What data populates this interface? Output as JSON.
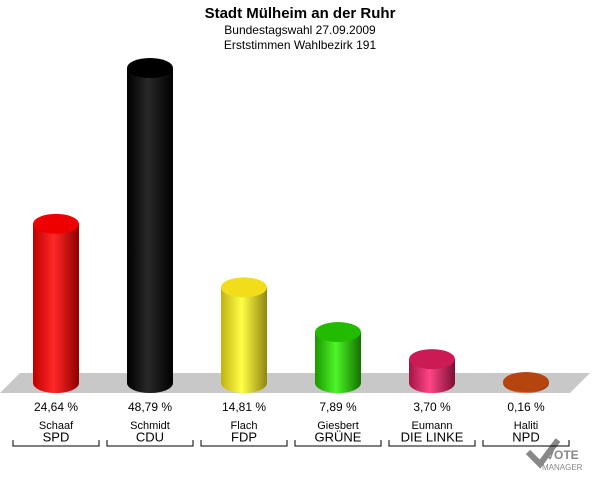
{
  "chart_data": {
    "type": "bar",
    "title": "Stadt Mülheim an der Ruhr",
    "subtitle": "Bundestagswahl 27.09.2009",
    "subtitle2": "Erststimmen Wahlbezirk 191",
    "categories": [
      "SPD",
      "CDU",
      "FDP",
      "GRÜNE",
      "DIE LINKE",
      "NPD"
    ],
    "candidates": [
      "Schaaf",
      "Schmidt",
      "Flach",
      "Giesbert",
      "Eumann",
      "Haliti"
    ],
    "values": [
      24.64,
      48.79,
      14.81,
      7.89,
      3.7,
      0.16
    ],
    "value_labels": [
      "24,64 %",
      "48,79 %",
      "14,81 %",
      "7,89 %",
      "3,70 %",
      "0,16 %"
    ],
    "colors": [
      "#ee0000",
      "#000000",
      "#f2dd1a",
      "#22bb00",
      "#cc1a55",
      "#b5440f"
    ],
    "logo": [
      "VOTE",
      "MANAGER"
    ]
  }
}
